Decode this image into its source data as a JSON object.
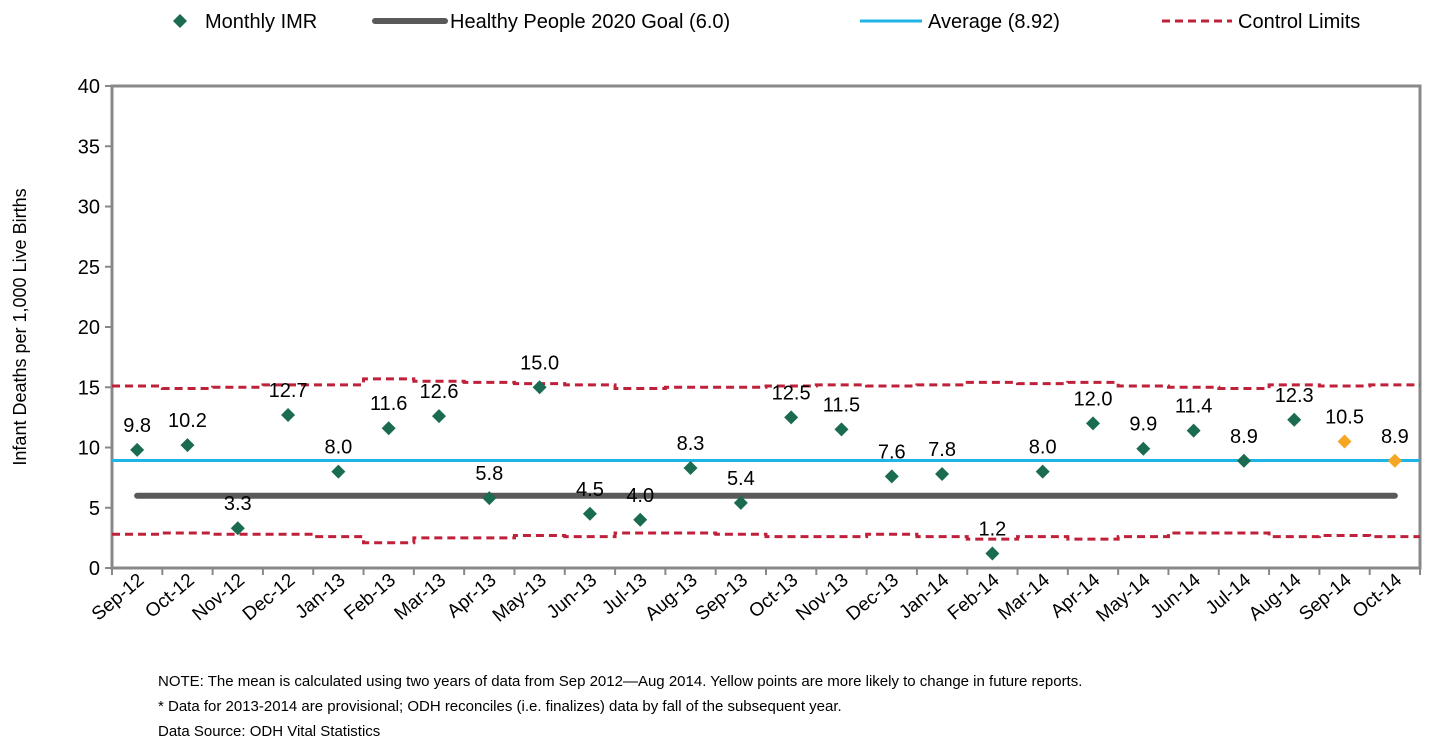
{
  "chart_data": {
    "type": "line",
    "y_label": "Infant Deaths per 1,000 Live Births",
    "categories": [
      "Sep-12",
      "Oct-12",
      "Nov-12",
      "Dec-12",
      "Jan-13",
      "Feb-13",
      "Mar-13",
      "Apr-13",
      "May-13",
      "Jun-13",
      "Jul-13",
      "Aug-13",
      "Sep-13",
      "Oct-13",
      "Nov-13",
      "Dec-13",
      "Jan-14",
      "Feb-14",
      "Mar-14",
      "Apr-14",
      "May-14",
      "Jun-14",
      "Jul-14",
      "Aug-14",
      "Sep-14",
      "Oct-14"
    ],
    "series": [
      {
        "name": "Monthly IMR",
        "color": "#1a6b4f",
        "values": [
          9.8,
          10.2,
          3.3,
          12.7,
          8.0,
          11.6,
          12.6,
          5.8,
          15.0,
          4.5,
          4.0,
          8.3,
          5.4,
          12.5,
          11.5,
          7.6,
          7.8,
          1.2,
          8.0,
          12.0,
          9.9,
          11.4,
          8.9,
          12.3,
          10.5,
          8.9
        ],
        "value_labels": [
          "9.8",
          "10.2",
          "3.3",
          "12.7",
          "8.0",
          "11.6",
          "12.6",
          "5.8",
          "15.0",
          "4.5",
          "4.0",
          "8.3",
          "5.4",
          "12.5",
          "11.5",
          "7.6",
          "7.8",
          "1.2",
          "8.0",
          "12.0",
          "9.9",
          "11.4",
          "8.9",
          "12.3",
          "10.5",
          "8.9"
        ],
        "point_colors": [
          "#1a6b4f",
          "#1a6b4f",
          "#1a6b4f",
          "#1a6b4f",
          "#1a6b4f",
          "#1a6b4f",
          "#1a6b4f",
          "#1a6b4f",
          "#1a6b4f",
          "#1a6b4f",
          "#1a6b4f",
          "#1a6b4f",
          "#1a6b4f",
          "#1a6b4f",
          "#1a6b4f",
          "#1a6b4f",
          "#1a6b4f",
          "#1a6b4f",
          "#1a6b4f",
          "#1a6b4f",
          "#1a6b4f",
          "#1a6b4f",
          "#1a6b4f",
          "#1a6b4f",
          "#f5a623",
          "#f5a623"
        ]
      },
      {
        "name": "Healthy People 2020 Goal (6.0)",
        "color": "#595959",
        "value": 6.0
      },
      {
        "name": "Average (8.92)",
        "color": "#1fb4e6",
        "value": 8.92
      },
      {
        "name": "Control Limits",
        "color": "#c0213a",
        "upper": [
          15.1,
          14.9,
          15.0,
          15.2,
          15.2,
          15.7,
          15.5,
          15.4,
          15.3,
          15.2,
          14.9,
          15.0,
          15.0,
          15.1,
          15.2,
          15.1,
          15.2,
          15.4,
          15.3,
          15.4,
          15.1,
          15.0,
          14.9,
          15.2,
          15.1,
          15.2
        ],
        "lower": [
          2.8,
          2.9,
          2.8,
          2.8,
          2.6,
          2.1,
          2.5,
          2.5,
          2.7,
          2.6,
          2.9,
          2.9,
          2.8,
          2.6,
          2.6,
          2.8,
          2.6,
          2.4,
          2.6,
          2.4,
          2.6,
          2.9,
          2.9,
          2.6,
          2.7,
          2.6
        ]
      }
    ],
    "ylim": [
      0,
      40
    ],
    "yticks": [
      0,
      5,
      10,
      15,
      20,
      25,
      30,
      35,
      40
    ],
    "notes": [
      "NOTE: The mean is calculated using two years of data from Sep 2012—Aug 2014.  Yellow points are more likely to change in future reports.",
      "* Data for 2013-2014 are provisional; ODH reconciles (i.e. finalizes) data by fall of the subsequent year.",
      "Data Source: ODH Vital Statistics"
    ]
  }
}
